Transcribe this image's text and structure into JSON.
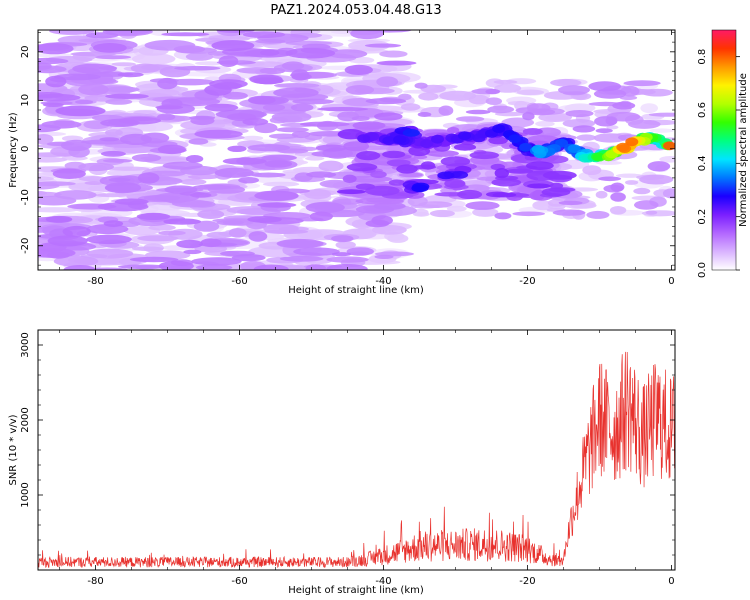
{
  "figure": {
    "title": "PAZ1.2024.053.04.48.G13"
  },
  "chart_data": [
    {
      "type": "heatmap",
      "xlabel": "Height of straight line (km)",
      "ylabel": "Frequency (Hz)",
      "xlim": [
        -88,
        0.5
      ],
      "ylim": [
        -25,
        24.5
      ],
      "x_ticks": [
        -80,
        -60,
        -40,
        -20,
        0
      ],
      "y_ticks": [
        -20,
        -10,
        0,
        10,
        20
      ],
      "colorbar": {
        "label": "Normalized spectral amplitude",
        "range": [
          0,
          0.9
        ],
        "ticks": [
          0.0,
          0.2,
          0.4,
          0.6,
          0.8
        ],
        "colormap": [
          "#ffffff",
          "#d9b3ff",
          "#b266ff",
          "#7a1fff",
          "#1a00ff",
          "#0078ff",
          "#00e5ff",
          "#00ff80",
          "#33ff00",
          "#b3ff00",
          "#fff200",
          "#ff9900",
          "#ff3300",
          "#ff1a66"
        ]
      },
      "ridge": [
        {
          "x": -43,
          "y": 2.5,
          "v": 0.22
        },
        {
          "x": -38,
          "y": 2.0,
          "v": 0.28
        },
        {
          "x": -34,
          "y": 1.0,
          "v": 0.22
        },
        {
          "x": -30,
          "y": 2.0,
          "v": 0.25
        },
        {
          "x": -26,
          "y": 3.0,
          "v": 0.24
        },
        {
          "x": -23,
          "y": 4.0,
          "v": 0.27
        },
        {
          "x": -20,
          "y": 0.0,
          "v": 0.3
        },
        {
          "x": -18,
          "y": -0.8,
          "v": 0.38
        },
        {
          "x": -15,
          "y": 1.5,
          "v": 0.3
        },
        {
          "x": -12,
          "y": -1.5,
          "v": 0.45
        },
        {
          "x": -9,
          "y": -1.5,
          "v": 0.55
        },
        {
          "x": -6,
          "y": 0.5,
          "v": 0.85
        },
        {
          "x": -3,
          "y": 2.5,
          "v": 0.55
        },
        {
          "x": -1,
          "y": 1.0,
          "v": 0.45
        },
        {
          "x": 0,
          "y": 0.5,
          "v": 0.88
        }
      ],
      "secondary_blobs": [
        {
          "x": -35,
          "y": -8,
          "v": 0.3
        },
        {
          "x": -30,
          "y": -5,
          "v": 0.26
        },
        {
          "x": -37,
          "y": 3.5,
          "v": 0.3
        }
      ]
    },
    {
      "type": "line",
      "xlabel": "Height of straight line (km)",
      "ylabel": "SNR (10 * v/v)",
      "xlim": [
        -88,
        0.5
      ],
      "ylim": [
        0,
        3200
      ],
      "x_ticks": [
        -80,
        -60,
        -40,
        -20,
        0
      ],
      "y_ticks": [
        1000,
        2000,
        3000
      ],
      "series": [
        {
          "color": "#e8322e",
          "envelope": {
            "x": [
              -88,
              -45,
              -42,
              -38,
              -35,
              -30,
              -25,
              -20,
              -17,
              -15,
              -14,
              -12,
              -10,
              -8,
              -6,
              -4,
              -2,
              0,
              0.5
            ],
            "y": [
              140,
              140,
              200,
              320,
              420,
              440,
              460,
              380,
              200,
              160,
              700,
              1500,
              2200,
              2000,
              2400,
              1900,
              2200,
              2000,
              2100
            ]
          }
        }
      ]
    }
  ]
}
